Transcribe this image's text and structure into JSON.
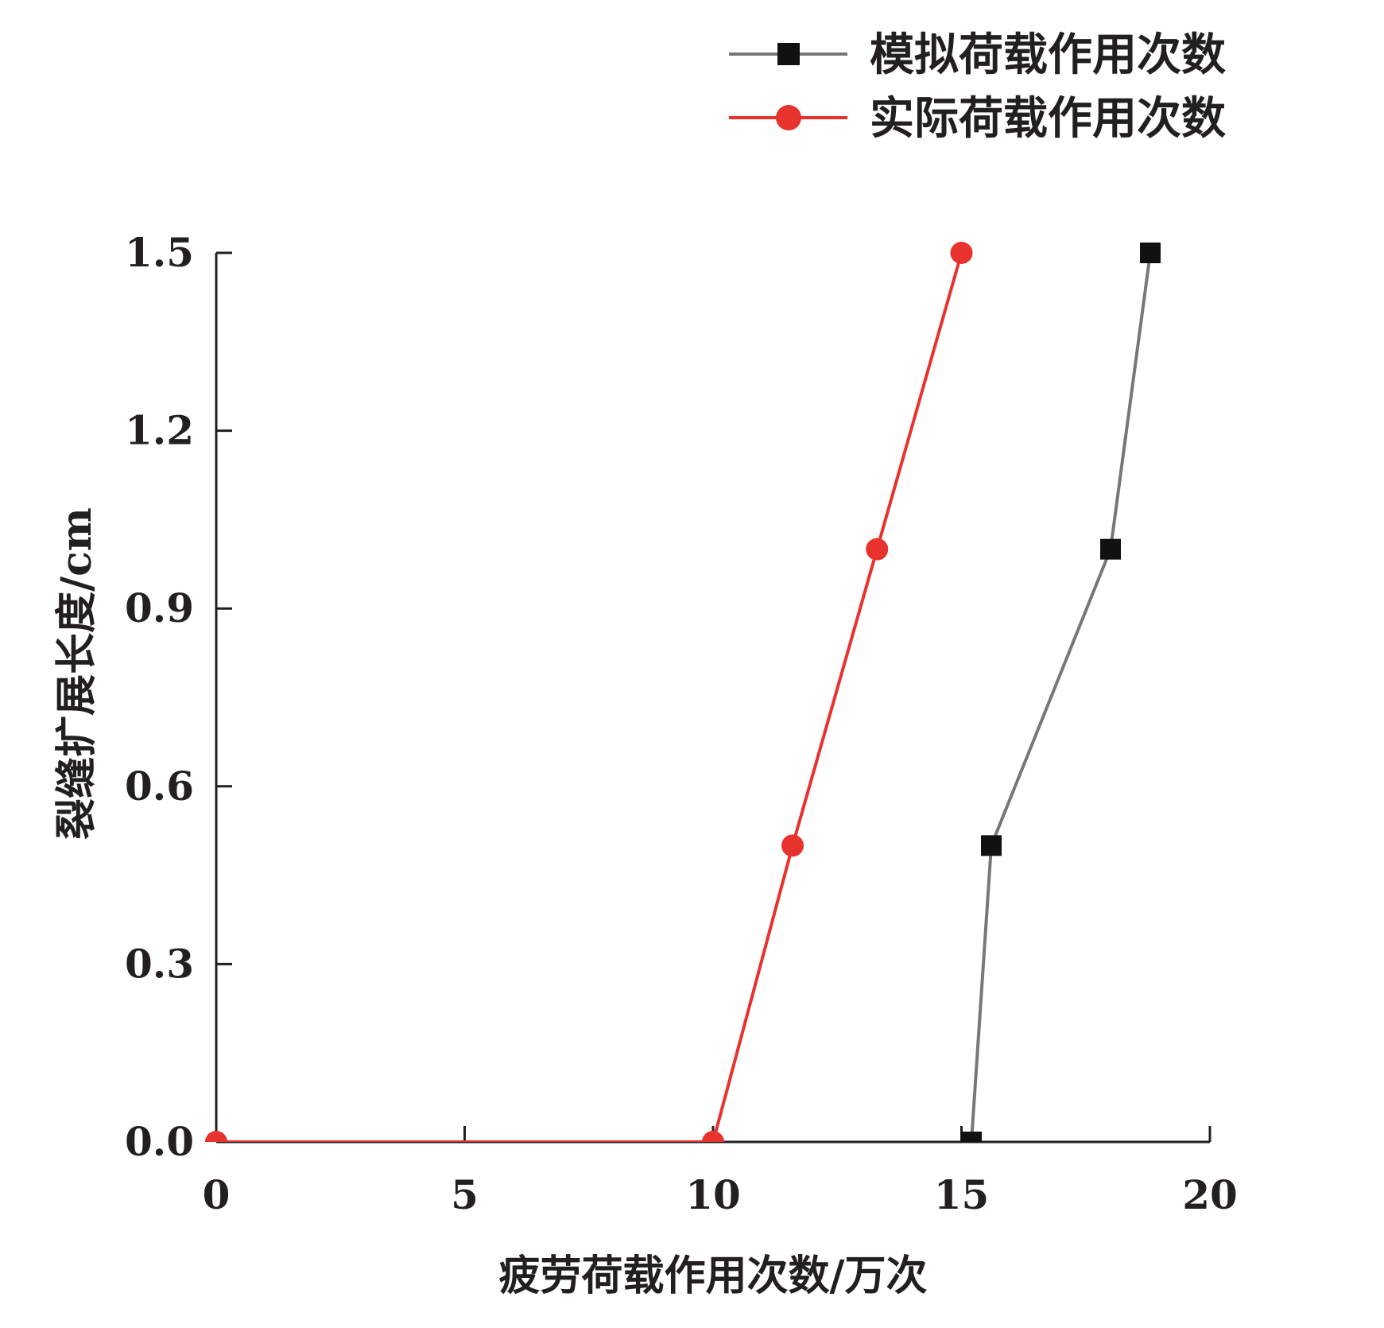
{
  "chart_data": {
    "type": "line",
    "title": "",
    "xlabel": "疲劳荷载作用次数/万次",
    "ylabel": "裂缝扩展长度/cm",
    "xlim": [
      0,
      20
    ],
    "ylim": [
      0,
      1.5
    ],
    "x_ticks": [
      "0",
      "5",
      "10",
      "15",
      "20"
    ],
    "y_ticks": [
      "0.0",
      "0.3",
      "0.6",
      "0.9",
      "1.2",
      "1.5"
    ],
    "grid": false,
    "legend_position": "top-right",
    "series": [
      {
        "name": "模拟荷载作用次数",
        "color": "#777777",
        "marker": "square",
        "marker_color": "#111111",
        "points": [
          {
            "x": 15.2,
            "y": 0.0
          },
          {
            "x": 15.6,
            "y": 0.5
          },
          {
            "x": 18.0,
            "y": 1.0
          },
          {
            "x": 18.8,
            "y": 1.5
          }
        ]
      },
      {
        "name": "实际荷载作用次数",
        "color": "#e8322d",
        "marker": "circle",
        "marker_color": "#e8322d",
        "points": [
          {
            "x": 0.0,
            "y": 0.0
          },
          {
            "x": 10.0,
            "y": 0.0
          },
          {
            "x": 11.6,
            "y": 0.5
          },
          {
            "x": 13.3,
            "y": 1.0
          },
          {
            "x": 15.0,
            "y": 1.5
          }
        ]
      }
    ]
  }
}
